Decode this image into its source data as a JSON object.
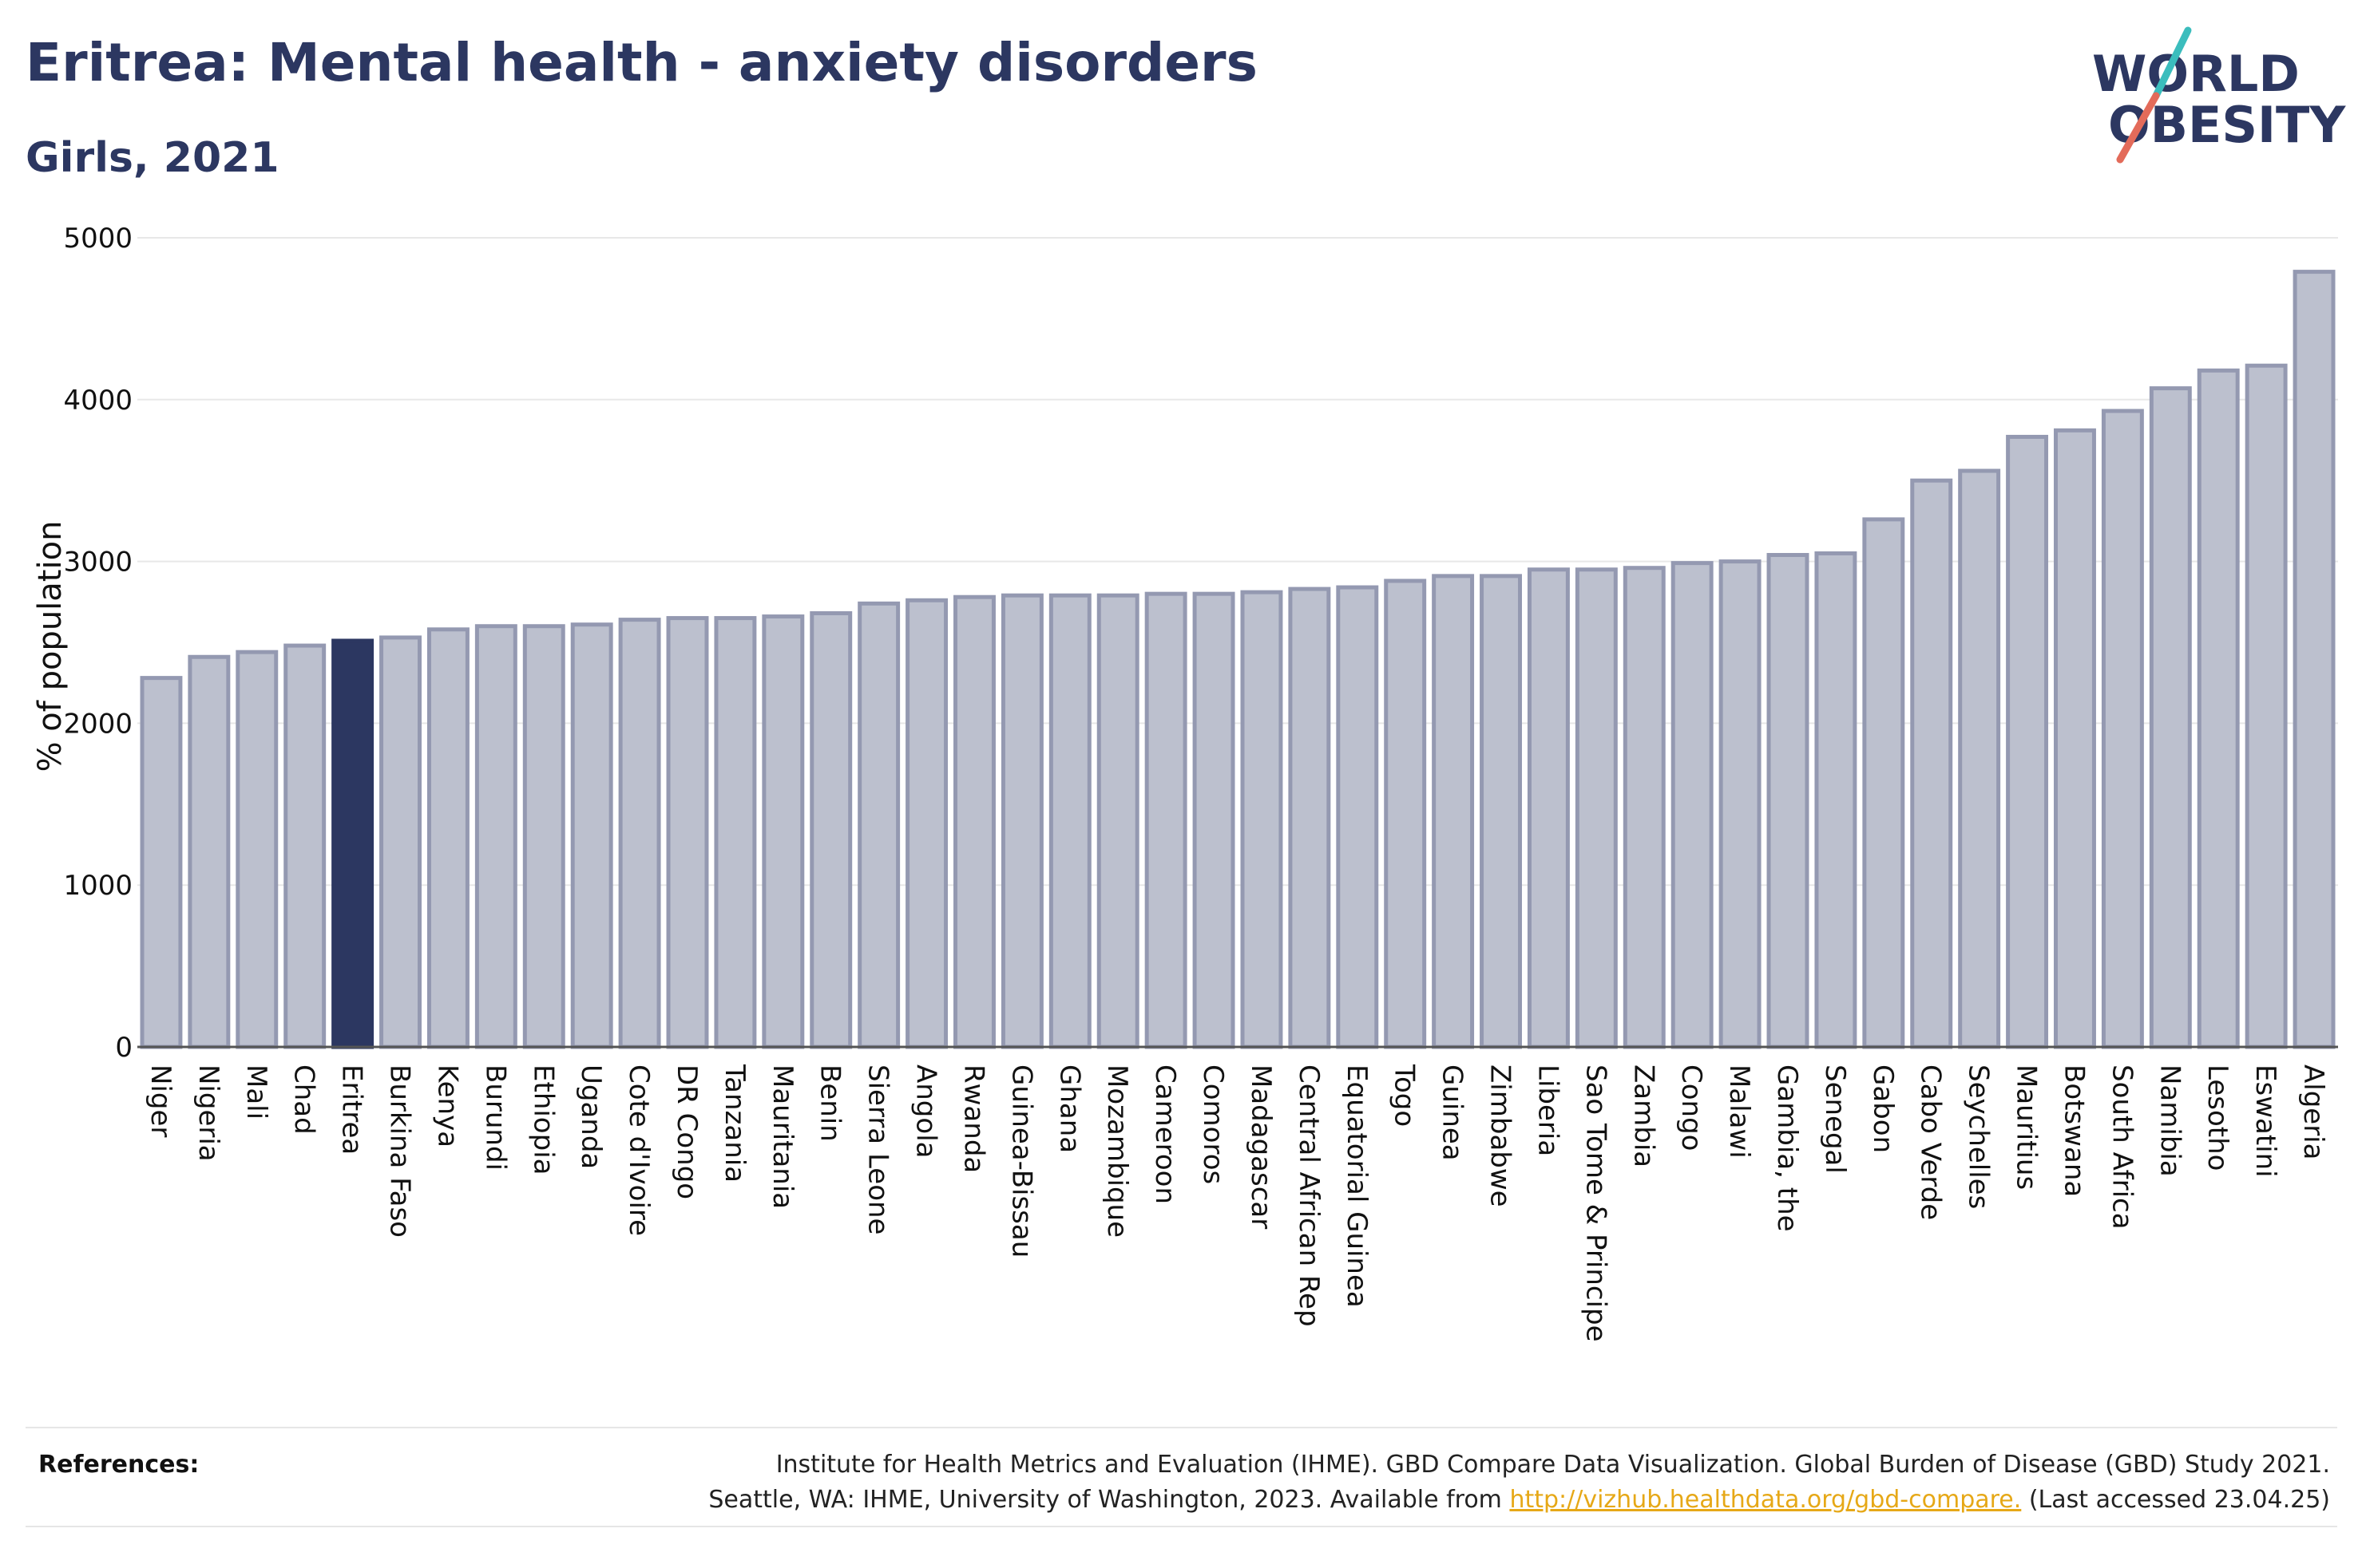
{
  "header": {
    "title": "Eritrea: Mental health - anxiety disorders",
    "subtitle": "Girls, 2021"
  },
  "logo": {
    "line1": "WORLD",
    "line2": "OBESITY",
    "text_color": "#2c3761",
    "slash_color_top": "#3bbdbd",
    "slash_color_bottom": "#e36b5a"
  },
  "references": {
    "label": "References:",
    "line1": "Institute for Health Metrics and Evaluation (IHME). GBD Compare Data Visualization. Global Burden of Disease (GBD) Study 2021.",
    "line2_prefix": "Seattle, WA: IHME, University of Washington, 2023. Available from ",
    "link": "http://vizhub.healthdata.org/gbd-compare.",
    "line2_suffix": " (Last accessed 23.04.25)"
  },
  "chart_data": {
    "type": "bar",
    "ylabel": "% of population",
    "ylim": [
      0,
      5000
    ],
    "yticks": [
      0,
      1000,
      2000,
      3000,
      4000,
      5000
    ],
    "grid": true,
    "highlight": "Eritrea",
    "colors": {
      "bar_fill": "#bcc0ce",
      "bar_stroke": "#9499b1",
      "highlight_fill": "#2c3761",
      "grid": "#e8e8e8",
      "axis": "#555555",
      "text": "#111111"
    },
    "categories": [
      "Niger",
      "Nigeria",
      "Mali",
      "Chad",
      "Eritrea",
      "Burkina Faso",
      "Kenya",
      "Burundi",
      "Ethiopia",
      "Uganda",
      "Cote d'Ivoire",
      "DR Congo",
      "Tanzania",
      "Mauritania",
      "Benin",
      "Sierra Leone",
      "Angola",
      "Rwanda",
      "Guinea-Bissau",
      "Ghana",
      "Mozambique",
      "Cameroon",
      "Comoros",
      "Madagascar",
      "Central African Rep",
      "Equatorial Guinea",
      "Togo",
      "Guinea",
      "Zimbabwe",
      "Liberia",
      "Sao Tome & Principe",
      "Zambia",
      "Congo",
      "Malawi",
      "Gambia, the",
      "Senegal",
      "Gabon",
      "Cabo Verde",
      "Seychelles",
      "Mauritius",
      "Botswana",
      "South Africa",
      "Namibia",
      "Lesotho",
      "Eswatini",
      "Algeria"
    ],
    "values": [
      2280,
      2410,
      2440,
      2480,
      2510,
      2530,
      2580,
      2600,
      2600,
      2610,
      2640,
      2650,
      2650,
      2660,
      2680,
      2740,
      2760,
      2780,
      2790,
      2790,
      2790,
      2800,
      2800,
      2810,
      2830,
      2840,
      2880,
      2910,
      2910,
      2950,
      2950,
      2960,
      2990,
      3000,
      3040,
      3050,
      3260,
      3500,
      3560,
      3770,
      3810,
      3930,
      4070,
      4180,
      4210,
      4790
    ]
  }
}
